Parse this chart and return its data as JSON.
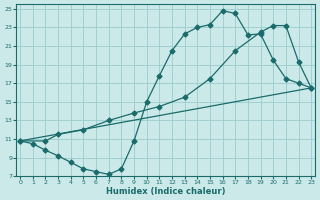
{
  "xlabel": "Humidex (Indice chaleur)",
  "xlim": [
    -0.3,
    23.3
  ],
  "ylim": [
    7,
    25.5
  ],
  "xticks": [
    0,
    1,
    2,
    3,
    4,
    5,
    6,
    7,
    8,
    9,
    10,
    11,
    12,
    13,
    14,
    15,
    16,
    17,
    18,
    19,
    20,
    21,
    22,
    23
  ],
  "yticks": [
    7,
    9,
    11,
    13,
    15,
    17,
    19,
    21,
    23,
    25
  ],
  "bg_color": "#cce9e9",
  "grid_color": "#99cccc",
  "line_color": "#1a6b6b",
  "line1_x": [
    0,
    1,
    2,
    3,
    4,
    5,
    6,
    7,
    8,
    9,
    10,
    11,
    12,
    13,
    14,
    15,
    16,
    17,
    18,
    19,
    20,
    21,
    22,
    23
  ],
  "line1_y": [
    10.8,
    10.5,
    9.8,
    9.2,
    8.5,
    7.8,
    7.5,
    7.2,
    7.8,
    10.8,
    15.0,
    17.8,
    20.5,
    22.3,
    23.0,
    23.3,
    24.8,
    24.5,
    22.2,
    22.3,
    19.5,
    17.5,
    17.0,
    16.5
  ],
  "line2_x": [
    0,
    2,
    3,
    5,
    7,
    9,
    11,
    13,
    15,
    17,
    19,
    20,
    21,
    22,
    23
  ],
  "line2_y": [
    10.8,
    10.8,
    11.5,
    12.0,
    13.0,
    13.8,
    14.5,
    15.5,
    17.5,
    20.5,
    22.5,
    23.2,
    23.2,
    19.3,
    16.5
  ],
  "line3_x": [
    0,
    23
  ],
  "line3_y": [
    10.8,
    16.5
  ],
  "marker": "D",
  "markersize": 2.5,
  "linewidth": 0.9
}
